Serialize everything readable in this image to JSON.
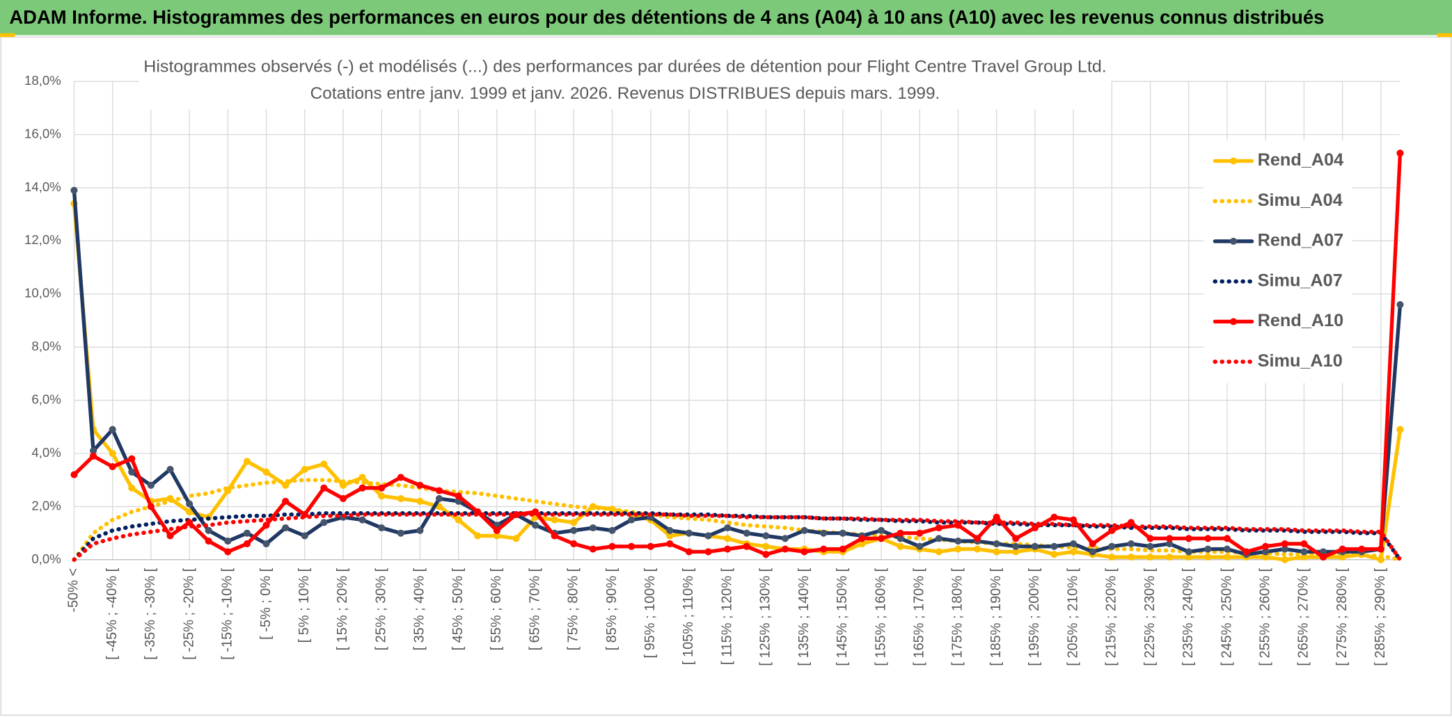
{
  "header": {
    "title": "ADAM Informe. Histogrammes des performances en euros pour des détentions de 4 ans (A04) à 10 ans (A10) avec les revenus connus distribués"
  },
  "chart_data": {
    "type": "line",
    "title": "Histogrammes observés (-) et modélisés (...) des performances par durées de détention pour Flight Centre Travel Group Ltd.",
    "subtitle": "Cotations entre janv. 1999 et janv. 2026. Revenus DISTRIBUES depuis mars. 1999.",
    "categories": [
      "-50% <",
      null,
      "[ -45% ; -40% [",
      null,
      "[ -35% ; -30% [",
      null,
      "[ -25% ; -20% [",
      null,
      "[ -15% ; -10% [",
      null,
      "[ -5% ; 0% [",
      null,
      "[ 5% ; 10% [",
      null,
      "[ 15% ; 20% [",
      null,
      "[ 25% ; 30% [",
      null,
      "[ 35% ; 40% [",
      null,
      "[ 45% ; 50% [",
      null,
      "[ 55% ; 60% [",
      null,
      "[ 65% ; 70% [",
      null,
      "[ 75% ; 80% [",
      null,
      "[ 85% ; 90% [",
      null,
      "[ 95% ; 100% [",
      null,
      "[ 105% ; 110% [",
      null,
      "[ 115% ; 120% [",
      null,
      "[ 125% ; 130% [",
      null,
      "[ 135% ; 140% [",
      null,
      "[ 145% ; 150% [",
      null,
      "[ 155% ; 160% [",
      null,
      "[ 165% ; 170% [",
      null,
      "[ 175% ; 180% [",
      null,
      "[ 185% ; 190% [",
      null,
      "[ 195% ; 200% [",
      null,
      "[ 205% ; 210% [",
      null,
      "[ 215% ; 220% [",
      null,
      "[ 225% ; 230% [",
      null,
      "[ 235% ; 240% [",
      null,
      "[ 245% ; 250% [",
      null,
      "[ 255% ; 260% [",
      null,
      "[ 265% ; 270% [",
      null,
      "[ 275% ; 280% [",
      null,
      "[ 285% ; 290% [",
      null
    ],
    "series": [
      {
        "name": "Rend_A04",
        "color": "#FFC000",
        "style": "solid",
        "markers": true,
        "values": [
          13.4,
          4.9,
          4.0,
          2.7,
          2.2,
          2.3,
          1.8,
          1.6,
          2.6,
          3.7,
          3.3,
          2.8,
          3.4,
          3.6,
          2.8,
          3.1,
          2.4,
          2.3,
          2.2,
          2.0,
          1.5,
          0.9,
          0.9,
          0.8,
          1.6,
          1.5,
          1.4,
          2.0,
          1.9,
          1.7,
          1.5,
          0.9,
          1.0,
          0.9,
          0.8,
          0.6,
          0.5,
          0.4,
          0.4,
          0.3,
          0.3,
          0.6,
          0.8,
          0.5,
          0.4,
          0.3,
          0.4,
          0.4,
          0.3,
          0.3,
          0.4,
          0.2,
          0.3,
          0.2,
          0.1,
          0.1,
          0.1,
          0.1,
          0.1,
          0.1,
          0.1,
          0.1,
          0.1,
          0.0,
          0.1,
          0.1,
          0.1,
          0.2,
          0.0,
          4.9
        ]
      },
      {
        "name": "Simu_A04",
        "color": "#FFC000",
        "style": "dotted",
        "markers": false,
        "values": [
          0,
          1.0,
          1.5,
          1.8,
          2.0,
          2.2,
          2.4,
          2.5,
          2.7,
          2.8,
          2.9,
          2.95,
          3.0,
          3.0,
          2.95,
          2.9,
          2.85,
          2.8,
          2.7,
          2.6,
          2.55,
          2.5,
          2.4,
          2.3,
          2.2,
          2.1,
          2.0,
          1.95,
          1.9,
          1.8,
          1.7,
          1.6,
          1.55,
          1.5,
          1.4,
          1.3,
          1.25,
          1.2,
          1.1,
          1.05,
          1.0,
          0.95,
          0.9,
          0.85,
          0.8,
          0.75,
          0.7,
          0.65,
          0.6,
          0.6,
          0.55,
          0.5,
          0.45,
          0.45,
          0.4,
          0.4,
          0.35,
          0.35,
          0.3,
          0.3,
          0.3,
          0.25,
          0.25,
          0.2,
          0.2,
          0.2,
          0.2,
          0.15,
          0.15,
          0
        ]
      },
      {
        "name": "Rend_A07",
        "color": "#1F3864",
        "marker_color": "#44546A",
        "style": "solid",
        "markers": true,
        "values": [
          13.9,
          4.1,
          4.9,
          3.3,
          2.8,
          3.4,
          2.1,
          1.1,
          0.7,
          1.0,
          0.6,
          1.2,
          0.9,
          1.4,
          1.6,
          1.5,
          1.2,
          1.0,
          1.1,
          2.3,
          2.2,
          1.8,
          1.3,
          1.7,
          1.3,
          1.0,
          1.1,
          1.2,
          1.1,
          1.5,
          1.6,
          1.1,
          1.0,
          0.9,
          1.2,
          1.0,
          0.9,
          0.8,
          1.1,
          1.0,
          1.0,
          0.9,
          1.1,
          0.8,
          0.5,
          0.8,
          0.7,
          0.7,
          0.6,
          0.5,
          0.5,
          0.5,
          0.6,
          0.3,
          0.5,
          0.6,
          0.5,
          0.6,
          0.3,
          0.4,
          0.4,
          0.2,
          0.3,
          0.4,
          0.3,
          0.3,
          0.3,
          0.3,
          0.4,
          9.6
        ]
      },
      {
        "name": "Simu_A07",
        "color": "#002060",
        "style": "dotted",
        "markers": false,
        "values": [
          0,
          0.8,
          1.1,
          1.25,
          1.35,
          1.45,
          1.5,
          1.55,
          1.6,
          1.65,
          1.65,
          1.7,
          1.7,
          1.75,
          1.75,
          1.75,
          1.75,
          1.75,
          1.75,
          1.75,
          1.75,
          1.75,
          1.75,
          1.75,
          1.75,
          1.75,
          1.75,
          1.75,
          1.75,
          1.75,
          1.75,
          1.7,
          1.7,
          1.7,
          1.65,
          1.65,
          1.6,
          1.6,
          1.6,
          1.55,
          1.55,
          1.5,
          1.5,
          1.45,
          1.45,
          1.4,
          1.4,
          1.4,
          1.35,
          1.35,
          1.3,
          1.3,
          1.3,
          1.25,
          1.25,
          1.2,
          1.2,
          1.2,
          1.15,
          1.15,
          1.15,
          1.1,
          1.1,
          1.1,
          1.05,
          1.05,
          1.05,
          1.0,
          1.0,
          0
        ]
      },
      {
        "name": "Rend_A10",
        "color": "#FF0000",
        "style": "solid",
        "markers": true,
        "values": [
          3.2,
          3.9,
          3.5,
          3.8,
          2.0,
          0.9,
          1.4,
          0.7,
          0.3,
          0.6,
          1.3,
          2.2,
          1.7,
          2.7,
          2.3,
          2.7,
          2.7,
          3.1,
          2.8,
          2.6,
          2.4,
          1.8,
          1.1,
          1.7,
          1.8,
          0.9,
          0.6,
          0.4,
          0.5,
          0.5,
          0.5,
          0.6,
          0.3,
          0.3,
          0.4,
          0.5,
          0.2,
          0.4,
          0.3,
          0.4,
          0.4,
          0.8,
          0.8,
          1.0,
          1.0,
          1.2,
          1.3,
          0.8,
          1.6,
          0.8,
          1.2,
          1.6,
          1.5,
          0.6,
          1.1,
          1.4,
          0.8,
          0.8,
          0.8,
          0.8,
          0.8,
          0.3,
          0.5,
          0.6,
          0.6,
          0.1,
          0.4,
          0.4,
          0.4,
          15.3
        ]
      },
      {
        "name": "Simu_A10",
        "color": "#FF0000",
        "style": "dotted",
        "markers": false,
        "values": [
          0,
          0.6,
          0.8,
          0.95,
          1.05,
          1.15,
          1.25,
          1.3,
          1.4,
          1.45,
          1.5,
          1.55,
          1.6,
          1.65,
          1.65,
          1.7,
          1.7,
          1.7,
          1.7,
          1.7,
          1.7,
          1.7,
          1.7,
          1.7,
          1.7,
          1.7,
          1.7,
          1.7,
          1.7,
          1.7,
          1.7,
          1.7,
          1.65,
          1.65,
          1.65,
          1.6,
          1.6,
          1.6,
          1.6,
          1.55,
          1.55,
          1.55,
          1.5,
          1.5,
          1.5,
          1.45,
          1.45,
          1.4,
          1.4,
          1.4,
          1.35,
          1.35,
          1.3,
          1.3,
          1.3,
          1.25,
          1.25,
          1.25,
          1.2,
          1.2,
          1.2,
          1.15,
          1.15,
          1.15,
          1.1,
          1.1,
          1.1,
          1.05,
          1.05,
          0
        ]
      }
    ],
    "ylim": [
      0,
      18
    ],
    "yticks": [
      {
        "value": 0,
        "label": "0,0%"
      },
      {
        "value": 2,
        "label": "2,0%"
      },
      {
        "value": 4,
        "label": "4,0%"
      },
      {
        "value": 6,
        "label": "6,0%"
      },
      {
        "value": 8,
        "label": "8,0%"
      },
      {
        "value": 10,
        "label": "10,0%"
      },
      {
        "value": 12,
        "label": "12,0%"
      },
      {
        "value": 14,
        "label": "14,0%"
      },
      {
        "value": 16,
        "label": "16,0%"
      },
      {
        "value": 18,
        "label": "18,0%"
      }
    ],
    "grid": true,
    "legend": "right"
  }
}
